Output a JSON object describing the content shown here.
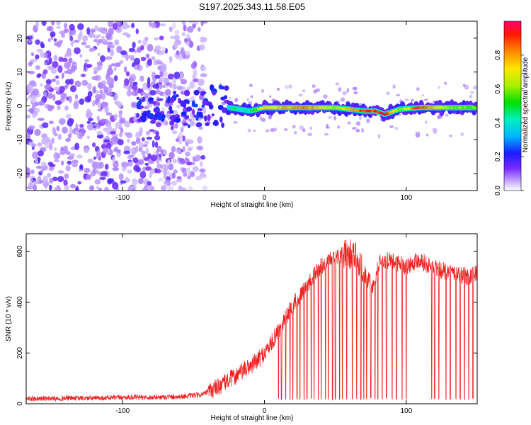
{
  "title": "S197.2025.343.11.58.E05",
  "chart_data": [
    {
      "type": "heatmap",
      "title": "S197.2025.343.11.58.E05",
      "xlabel": "Height of straight line (km)",
      "ylabel": "Frequency (Hz)",
      "xlim": [
        -168,
        150
      ],
      "ylim": [
        -25,
        25
      ],
      "x_ticks": [
        "-100",
        "0",
        "100"
      ],
      "x_tick_values": [
        -100,
        0,
        100
      ],
      "y_ticks": [
        "-20",
        "-10",
        "0",
        "10",
        "20"
      ],
      "y_tick_values": [
        -20,
        -10,
        0,
        10,
        20
      ],
      "colorbar": {
        "label": "Normalized spectral amplitude",
        "range": [
          0,
          1
        ],
        "ticks": [
          "0.0",
          "0.2",
          "0.4",
          "0.6",
          "0.8"
        ],
        "tick_values": [
          0.0,
          0.2,
          0.4,
          0.6,
          0.8
        ]
      },
      "description_series": [
        {
          "name": "noise region",
          "x_range": [
            -168,
            -42
          ],
          "freq_range": [
            -25,
            25
          ],
          "amplitude": 0.1
        },
        {
          "name": "transition",
          "x_range": [
            -90,
            -25
          ],
          "freq_center": 0,
          "freq_spread": 6,
          "amplitude": 0.3
        },
        {
          "name": "carrier line",
          "x": [
            -25,
            -10,
            0,
            10,
            30,
            50,
            70,
            78,
            85,
            95,
            110,
            130,
            150
          ],
          "freq": [
            -0.5,
            -1.5,
            -0.5,
            -0.5,
            -0.5,
            -0.5,
            -1.5,
            -1.5,
            -2.5,
            -1,
            -0.5,
            -0.5,
            -0.5
          ],
          "amplitude": [
            0.4,
            0.45,
            0.7,
            0.75,
            0.85,
            0.6,
            0.9,
            0.9,
            0.95,
            0.6,
            0.9,
            0.6,
            0.55
          ]
        }
      ]
    },
    {
      "type": "line",
      "xlabel": "Height of straight line (km)",
      "ylabel": "SNR (10 * v/v)",
      "xlim": [
        -168,
        150
      ],
      "ylim": [
        0,
        670
      ],
      "x_ticks": [
        "-100",
        "0",
        "100"
      ],
      "x_tick_values": [
        -100,
        0,
        100
      ],
      "y_ticks": [
        "0",
        "200",
        "400",
        "600"
      ],
      "y_tick_values": [
        0,
        200,
        400,
        600
      ],
      "series": [
        {
          "name": "SNR",
          "color": "#ee2222",
          "x": [
            -168,
            -140,
            -120,
            -100,
            -80,
            -60,
            -45,
            -40,
            -35,
            -30,
            -25,
            -20,
            -15,
            -10,
            -5,
            0,
            5,
            10,
            15,
            20,
            25,
            30,
            35,
            40,
            45,
            50,
            55,
            60,
            65,
            70,
            75,
            78,
            80,
            85,
            90,
            95,
            100,
            105,
            110,
            115,
            120,
            125,
            130,
            135,
            140,
            145,
            150
          ],
          "y": [
            20,
            22,
            22,
            25,
            25,
            28,
            35,
            45,
            60,
            75,
            95,
            110,
            130,
            150,
            170,
            200,
            240,
            290,
            340,
            390,
            430,
            470,
            510,
            540,
            560,
            575,
            585,
            590,
            580,
            520,
            470,
            460,
            550,
            565,
            560,
            555,
            540,
            560,
            570,
            545,
            535,
            525,
            520,
            515,
            505,
            500,
            515
          ],
          "dropouts_x": [
            10,
            12,
            15,
            18,
            20,
            23,
            25,
            28,
            30,
            33,
            35,
            38,
            40,
            43,
            45,
            48,
            50,
            53,
            55,
            58,
            62,
            65,
            68,
            70,
            72,
            75,
            78,
            80,
            83,
            86,
            90,
            93,
            97,
            100,
            118,
            120,
            123,
            128,
            131,
            135,
            138,
            141,
            144,
            147
          ],
          "dropout_floor": 15
        }
      ]
    }
  ]
}
